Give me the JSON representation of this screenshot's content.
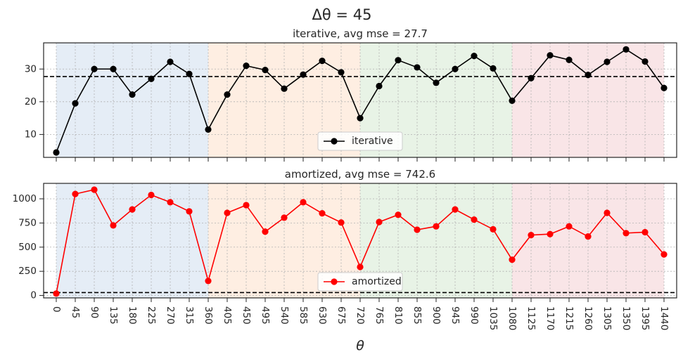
{
  "figure": {
    "suptitle": "Δθ = 45",
    "xlabel": "θ"
  },
  "chart_data": [
    {
      "type": "line",
      "title": "iterative, avg mse = 27.7",
      "xlabel": "",
      "ylabel": "",
      "xlim": [
        -30,
        1470
      ],
      "ylim": [
        3,
        38
      ],
      "yticks": [
        10,
        20,
        30
      ],
      "xticks": [
        0,
        45,
        90,
        135,
        180,
        225,
        270,
        315,
        360,
        405,
        450,
        495,
        540,
        585,
        630,
        675,
        720,
        765,
        810,
        855,
        900,
        945,
        990,
        1035,
        1080,
        1125,
        1170,
        1215,
        1260,
        1305,
        1350,
        1395,
        1440
      ],
      "grid": true,
      "legend": "lower center",
      "hline": 27.7,
      "bands": [
        {
          "x0": 0,
          "x1": 360,
          "color": "#dce7f3"
        },
        {
          "x0": 360,
          "x1": 720,
          "color": "#fde8d8"
        },
        {
          "x0": 720,
          "x1": 1080,
          "color": "#e0efde"
        },
        {
          "x0": 1080,
          "x1": 1440,
          "color": "#f7dcdf"
        }
      ],
      "series": [
        {
          "name": "iterative",
          "color": "#000000",
          "x": [
            0,
            45,
            90,
            135,
            180,
            225,
            270,
            315,
            360,
            405,
            450,
            495,
            540,
            585,
            630,
            675,
            720,
            765,
            810,
            855,
            900,
            945,
            990,
            1035,
            1080,
            1125,
            1170,
            1215,
            1260,
            1305,
            1350,
            1395,
            1440
          ],
          "y": [
            4.5,
            19.5,
            30.0,
            30.0,
            22.2,
            27.0,
            32.2,
            28.5,
            11.5,
            22.2,
            31.0,
            29.7,
            24.0,
            28.3,
            32.5,
            29.0,
            15.0,
            24.8,
            32.7,
            30.5,
            25.8,
            30.0,
            34.0,
            30.2,
            20.3,
            27.2,
            34.2,
            32.8,
            28.2,
            32.2,
            36.0,
            32.3,
            24.2
          ]
        }
      ]
    },
    {
      "type": "line",
      "title": "amortized, avg mse = 742.6",
      "xlabel": "θ",
      "ylabel": "",
      "xlim": [
        -30,
        1470
      ],
      "ylim": [
        -25,
        1160
      ],
      "yticks": [
        0,
        250,
        500,
        750,
        1000
      ],
      "xticks": [
        0,
        45,
        90,
        135,
        180,
        225,
        270,
        315,
        360,
        405,
        450,
        495,
        540,
        585,
        630,
        675,
        720,
        765,
        810,
        855,
        900,
        945,
        990,
        1035,
        1080,
        1125,
        1170,
        1215,
        1260,
        1305,
        1350,
        1395,
        1440
      ],
      "grid": true,
      "legend": "lower center",
      "hline": 30,
      "bands": [
        {
          "x0": 0,
          "x1": 360,
          "color": "#dce7f3"
        },
        {
          "x0": 360,
          "x1": 720,
          "color": "#fde8d8"
        },
        {
          "x0": 720,
          "x1": 1080,
          "color": "#e0efde"
        },
        {
          "x0": 1080,
          "x1": 1440,
          "color": "#f7dcdf"
        }
      ],
      "series": [
        {
          "name": "amortized",
          "color": "#ff0000",
          "x": [
            0,
            45,
            90,
            135,
            180,
            225,
            270,
            315,
            360,
            405,
            450,
            495,
            540,
            585,
            630,
            675,
            720,
            765,
            810,
            855,
            900,
            945,
            990,
            1035,
            1080,
            1125,
            1170,
            1215,
            1260,
            1305,
            1350,
            1395,
            1440
          ],
          "y": [
            20,
            1050,
            1095,
            725,
            890,
            1040,
            965,
            870,
            150,
            855,
            935,
            660,
            805,
            965,
            850,
            755,
            295,
            760,
            835,
            680,
            715,
            890,
            785,
            685,
            370,
            625,
            635,
            715,
            610,
            855,
            645,
            655,
            425
          ]
        }
      ]
    }
  ]
}
